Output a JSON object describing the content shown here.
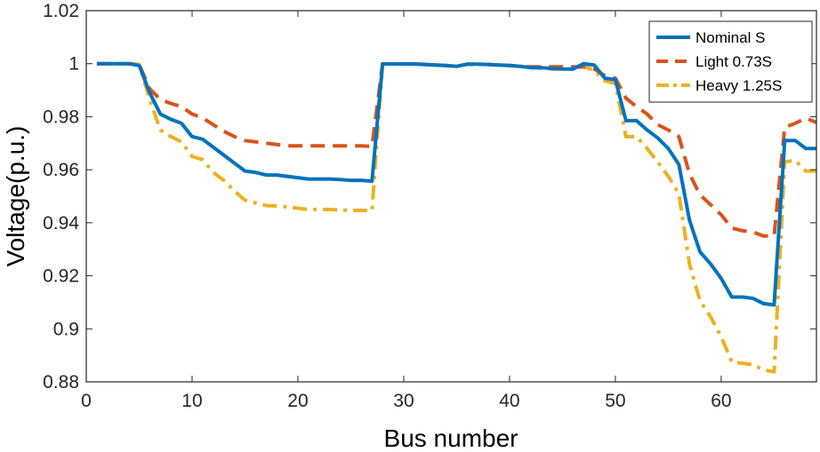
{
  "chart_data": {
    "type": "line",
    "title": "",
    "xlabel": "Bus number",
    "ylabel": "Voltage(p.u.)",
    "xlim": [
      0,
      69
    ],
    "ylim": [
      0.88,
      1.02
    ],
    "xticks": [
      0,
      10,
      20,
      30,
      40,
      50,
      60
    ],
    "yticks": [
      0.88,
      0.9,
      0.92,
      0.94,
      0.96,
      0.98,
      1,
      1.02
    ],
    "xtick_labels": [
      "0",
      "10",
      "20",
      "30",
      "40",
      "50",
      "60"
    ],
    "ytick_labels": [
      "0.88",
      "0.9",
      "0.92",
      "0.94",
      "0.96",
      "0.98",
      "1",
      "1.02"
    ],
    "grid": false,
    "legend_position": "top-right",
    "x": [
      1,
      2,
      3,
      4,
      5,
      6,
      7,
      8,
      9,
      10,
      11,
      12,
      13,
      14,
      15,
      16,
      17,
      18,
      19,
      20,
      21,
      22,
      23,
      24,
      25,
      26,
      27,
      28,
      29,
      30,
      31,
      32,
      33,
      34,
      35,
      36,
      37,
      38,
      39,
      40,
      41,
      42,
      43,
      44,
      45,
      46,
      47,
      48,
      49,
      50,
      51,
      52,
      53,
      54,
      55,
      56,
      57,
      58,
      59,
      60,
      61,
      62,
      63,
      64,
      65,
      66,
      67,
      68,
      69
    ],
    "series": [
      {
        "name": "Nominal S",
        "color": "#0072BD",
        "style": "solid",
        "values": [
          1.0,
          1.0,
          1.0,
          1.0,
          0.9993,
          0.989,
          0.981,
          0.979,
          0.9775,
          0.9725,
          0.9715,
          0.9685,
          0.9655,
          0.9625,
          0.9595,
          0.959,
          0.958,
          0.958,
          0.9575,
          0.957,
          0.9565,
          0.9565,
          0.9565,
          0.9563,
          0.956,
          0.956,
          0.9557,
          0.9999,
          0.9999,
          0.9999,
          0.9999,
          0.9997,
          0.9995,
          0.9993,
          0.999,
          0.9998,
          0.9998,
          0.9997,
          0.9995,
          0.9993,
          0.999,
          0.9985,
          0.9985,
          0.9982,
          0.998,
          0.998,
          1.0,
          0.9995,
          0.9945,
          0.994,
          0.9785,
          0.9785,
          0.975,
          0.972,
          0.968,
          0.962,
          0.941,
          0.929,
          0.9245,
          0.919,
          0.912,
          0.912,
          0.9115,
          0.9095,
          0.909,
          0.971,
          0.971,
          0.968,
          0.968
        ]
      },
      {
        "name": "Light 0.73S",
        "color": "#D95319",
        "style": "dashed",
        "values": [
          1.0,
          1.0,
          1.0,
          1.0,
          0.9997,
          0.9905,
          0.9865,
          0.985,
          0.9838,
          0.981,
          0.9795,
          0.977,
          0.9745,
          0.9725,
          0.971,
          0.9705,
          0.97,
          0.9695,
          0.969,
          0.969,
          0.969,
          0.969,
          0.969,
          0.969,
          0.969,
          0.969,
          0.9688,
          0.9999,
          0.9999,
          0.9999,
          0.9999,
          0.9997,
          0.9995,
          0.9993,
          0.999,
          0.9998,
          0.9998,
          0.9997,
          0.9995,
          0.9993,
          0.999,
          0.9988,
          0.9988,
          0.9988,
          0.9988,
          0.9988,
          0.9988,
          0.998,
          0.9955,
          0.9945,
          0.987,
          0.9838,
          0.981,
          0.977,
          0.975,
          0.9725,
          0.9585,
          0.9505,
          0.9468,
          0.943,
          0.938,
          0.937,
          0.9365,
          0.935,
          0.935,
          0.976,
          0.9775,
          0.9795,
          0.9778
        ]
      },
      {
        "name": "Heavy 1.25S",
        "color": "#EDB120",
        "style": "dashdot",
        "values": [
          1.0,
          1.0,
          1.0,
          1.0,
          0.9997,
          0.9865,
          0.975,
          0.9725,
          0.9705,
          0.965,
          0.9638,
          0.959,
          0.956,
          0.952,
          0.9485,
          0.9475,
          0.9465,
          0.9463,
          0.946,
          0.9455,
          0.945,
          0.945,
          0.945,
          0.9448,
          0.9447,
          0.9447,
          0.9445,
          0.9999,
          0.9999,
          0.9999,
          0.9999,
          0.9997,
          0.9995,
          0.9993,
          0.999,
          0.9998,
          0.9998,
          0.9997,
          0.9995,
          0.9993,
          0.999,
          0.9985,
          0.9983,
          0.998,
          0.998,
          0.998,
          0.999,
          0.9975,
          0.9935,
          0.9925,
          0.9725,
          0.9725,
          0.968,
          0.963,
          0.9575,
          0.951,
          0.9245,
          0.9105,
          0.9045,
          0.897,
          0.8875,
          0.887,
          0.8865,
          0.8845,
          0.8838,
          0.963,
          0.9635,
          0.9595,
          0.9595
        ]
      }
    ]
  }
}
